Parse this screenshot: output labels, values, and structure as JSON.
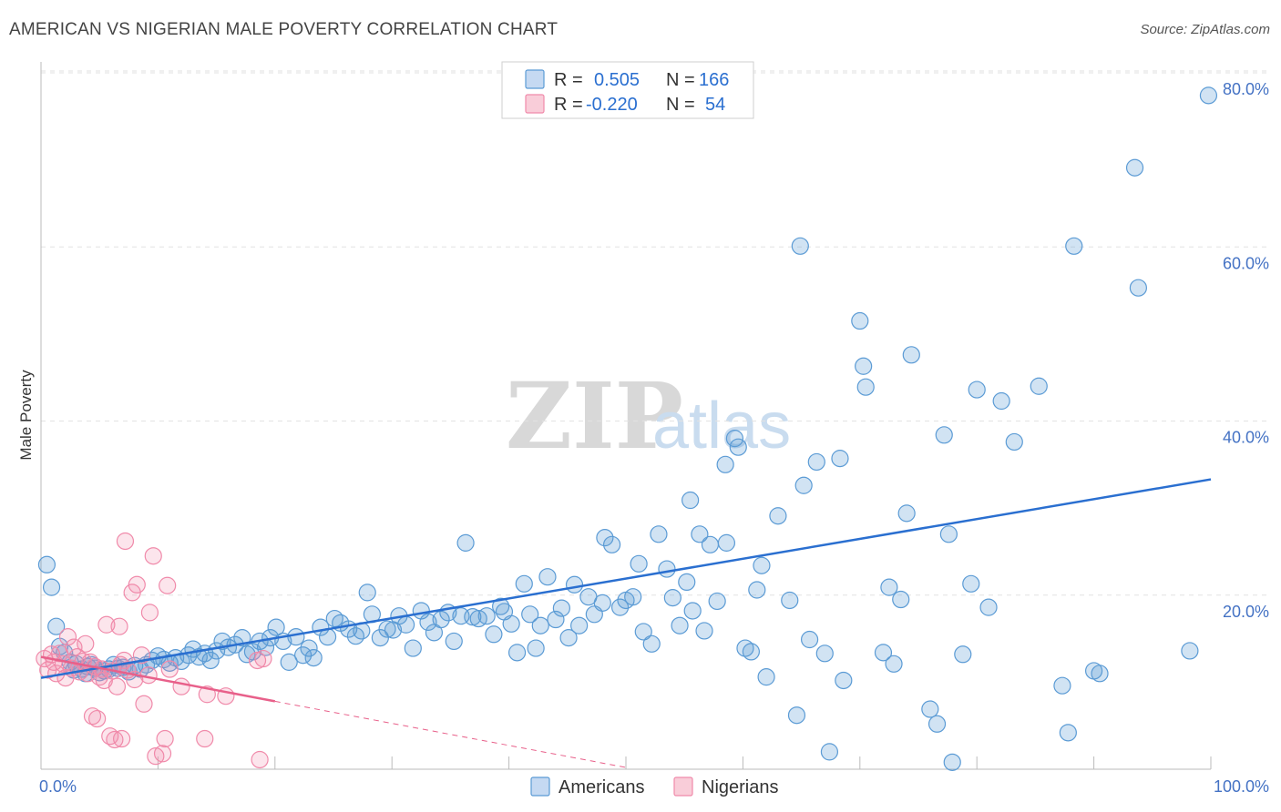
{
  "header": {
    "title": "AMERICAN VS NIGERIAN MALE POVERTY CORRELATION CHART",
    "source": "Source: ZipAtlas.com"
  },
  "watermark": {
    "zip": "ZIP",
    "atlas": "atlas"
  },
  "legend_top": [
    {
      "r_label": "R =",
      "r_value": "0.505",
      "n_label": "N =",
      "n_value": "166",
      "color": "#5b9bd5"
    },
    {
      "r_label": "R =",
      "r_value": "-0.220",
      "n_label": "N =",
      "n_value": "54",
      "color": "#f08aaa"
    }
  ],
  "colors": {
    "americans": "#5b9bd5",
    "americans_line": "#2a6fd0",
    "nigerians": "#f08aaa",
    "nigerians_line": "#e8608a",
    "label": "#4472c4"
  },
  "chart_data": {
    "type": "scatter",
    "title": "AMERICAN VS NIGERIAN MALE POVERTY CORRELATION CHART",
    "xlabel": "",
    "ylabel": "Male Poverty",
    "xlim": [
      0,
      100
    ],
    "ylim": [
      0,
      80
    ],
    "x_tick_labels": [
      "0.0%",
      "100.0%"
    ],
    "y_ticks": [
      20,
      40,
      60,
      80
    ],
    "y_tick_labels": [
      "20.0%",
      "40.0%",
      "60.0%",
      "80.0%"
    ],
    "grid": true,
    "legend_position": "bottom",
    "series": [
      {
        "name": "Americans",
        "trend": {
          "x": [
            0,
            100
          ],
          "y": [
            10.5,
            33.3
          ]
        },
        "points": [
          [
            0.5,
            23.5
          ],
          [
            0.9,
            20.9
          ],
          [
            1.3,
            16.4
          ],
          [
            1.6,
            14.1
          ],
          [
            2.0,
            13.4
          ],
          [
            2.5,
            12.3
          ],
          [
            2.8,
            11.4
          ],
          [
            3.0,
            12.1
          ],
          [
            3.5,
            11.5
          ],
          [
            3.8,
            11.0
          ],
          [
            4.0,
            11.8
          ],
          [
            4.3,
            12.0
          ],
          [
            4.6,
            11.6
          ],
          [
            5.0,
            11.1
          ],
          [
            5.4,
            11.3
          ],
          [
            5.8,
            11.5
          ],
          [
            6.2,
            12.0
          ],
          [
            6.6,
            11.6
          ],
          [
            7.0,
            11.7
          ],
          [
            7.5,
            11.2
          ],
          [
            8.0,
            11.9
          ],
          [
            8.5,
            11.5
          ],
          [
            9.0,
            12.0
          ],
          [
            9.5,
            12.5
          ],
          [
            10.0,
            13.0
          ],
          [
            10.5,
            12.6
          ],
          [
            11.0,
            12.2
          ],
          [
            11.5,
            12.8
          ],
          [
            12.0,
            12.4
          ],
          [
            12.6,
            13.1
          ],
          [
            13.0,
            13.8
          ],
          [
            13.5,
            12.9
          ],
          [
            14.0,
            13.3
          ],
          [
            14.5,
            12.5
          ],
          [
            15.0,
            13.6
          ],
          [
            15.5,
            14.7
          ],
          [
            16.0,
            14.0
          ],
          [
            16.6,
            14.3
          ],
          [
            17.2,
            15.1
          ],
          [
            17.6,
            13.2
          ],
          [
            18.1,
            13.5
          ],
          [
            18.7,
            14.7
          ],
          [
            19.2,
            14.0
          ],
          [
            19.6,
            15.1
          ],
          [
            20.1,
            16.3
          ],
          [
            20.7,
            14.7
          ],
          [
            21.2,
            12.3
          ],
          [
            21.8,
            15.2
          ],
          [
            22.4,
            13.1
          ],
          [
            22.9,
            13.9
          ],
          [
            23.3,
            12.8
          ],
          [
            23.9,
            16.3
          ],
          [
            24.5,
            15.2
          ],
          [
            25.1,
            17.3
          ],
          [
            25.6,
            16.8
          ],
          [
            26.3,
            16.1
          ],
          [
            26.9,
            15.3
          ],
          [
            27.4,
            15.9
          ],
          [
            27.9,
            20.3
          ],
          [
            28.3,
            17.8
          ],
          [
            29.0,
            15.1
          ],
          [
            29.6,
            16.1
          ],
          [
            30.1,
            16.0
          ],
          [
            30.6,
            17.6
          ],
          [
            31.2,
            16.6
          ],
          [
            31.8,
            13.9
          ],
          [
            32.5,
            18.2
          ],
          [
            33.1,
            16.9
          ],
          [
            33.6,
            15.7
          ],
          [
            34.2,
            17.2
          ],
          [
            34.8,
            18.0
          ],
          [
            35.3,
            14.7
          ],
          [
            35.9,
            17.6
          ],
          [
            36.3,
            26.0
          ],
          [
            36.9,
            17.5
          ],
          [
            37.4,
            17.3
          ],
          [
            38.1,
            17.6
          ],
          [
            38.7,
            15.5
          ],
          [
            39.3,
            18.7
          ],
          [
            39.6,
            18.1
          ],
          [
            40.2,
            16.7
          ],
          [
            40.7,
            13.4
          ],
          [
            41.3,
            21.3
          ],
          [
            41.8,
            17.8
          ],
          [
            42.3,
            13.9
          ],
          [
            42.7,
            16.5
          ],
          [
            43.3,
            22.1
          ],
          [
            44.0,
            17.2
          ],
          [
            44.5,
            18.5
          ],
          [
            45.1,
            15.1
          ],
          [
            45.6,
            21.2
          ],
          [
            46.0,
            16.5
          ],
          [
            46.8,
            19.8
          ],
          [
            47.3,
            17.8
          ],
          [
            48.0,
            19.1
          ],
          [
            48.2,
            26.6
          ],
          [
            48.8,
            25.8
          ],
          [
            49.5,
            18.6
          ],
          [
            50.0,
            19.4
          ],
          [
            50.6,
            19.8
          ],
          [
            51.1,
            23.6
          ],
          [
            51.5,
            15.8
          ],
          [
            52.2,
            14.4
          ],
          [
            52.8,
            27.0
          ],
          [
            53.5,
            23.0
          ],
          [
            54.0,
            19.7
          ],
          [
            54.6,
            16.5
          ],
          [
            55.2,
            21.5
          ],
          [
            55.7,
            18.2
          ],
          [
            55.5,
            30.9
          ],
          [
            56.3,
            27.0
          ],
          [
            56.7,
            15.9
          ],
          [
            57.2,
            25.8
          ],
          [
            57.8,
            19.3
          ],
          [
            58.6,
            26.0
          ],
          [
            58.5,
            35.0
          ],
          [
            59.3,
            38.0
          ],
          [
            59.6,
            37.0
          ],
          [
            60.2,
            13.9
          ],
          [
            60.7,
            13.5
          ],
          [
            61.2,
            20.6
          ],
          [
            61.6,
            23.4
          ],
          [
            62.0,
            10.6
          ],
          [
            63.0,
            29.1
          ],
          [
            64.0,
            19.4
          ],
          [
            64.6,
            6.2
          ],
          [
            64.9,
            60.1
          ],
          [
            65.2,
            32.6
          ],
          [
            65.7,
            14.9
          ],
          [
            66.3,
            35.3
          ],
          [
            67.0,
            13.3
          ],
          [
            67.4,
            2.0
          ],
          [
            68.3,
            35.7
          ],
          [
            68.6,
            10.2
          ],
          [
            70.0,
            51.5
          ],
          [
            70.3,
            46.3
          ],
          [
            70.5,
            43.9
          ],
          [
            72.0,
            13.4
          ],
          [
            72.5,
            20.9
          ],
          [
            72.9,
            12.1
          ],
          [
            73.5,
            19.5
          ],
          [
            74.0,
            29.4
          ],
          [
            74.4,
            47.6
          ],
          [
            76.0,
            6.9
          ],
          [
            76.6,
            5.2
          ],
          [
            77.2,
            38.4
          ],
          [
            77.6,
            27.0
          ],
          [
            77.9,
            0.8
          ],
          [
            78.8,
            13.2
          ],
          [
            79.5,
            21.3
          ],
          [
            80.0,
            43.6
          ],
          [
            81.0,
            18.6
          ],
          [
            82.1,
            42.3
          ],
          [
            83.2,
            37.6
          ],
          [
            85.3,
            44.0
          ],
          [
            87.3,
            9.6
          ],
          [
            87.8,
            4.2
          ],
          [
            88.3,
            60.1
          ],
          [
            90.0,
            11.3
          ],
          [
            90.5,
            11.0
          ],
          [
            93.5,
            69.1
          ],
          [
            93.8,
            55.3
          ],
          [
            98.2,
            13.6
          ],
          [
            99.8,
            77.4
          ]
        ]
      },
      {
        "name": "Nigerians",
        "trend": {
          "x": [
            0,
            20
          ],
          "y": [
            12.9,
            7.8
          ],
          "dashed_extension": {
            "x": [
              20,
              50
            ],
            "y": [
              7.8,
              0.2
            ]
          }
        },
        "points": [
          [
            0.3,
            12.7
          ],
          [
            0.6,
            11.4
          ],
          [
            0.9,
            13.2
          ],
          [
            1.1,
            12.3
          ],
          [
            1.3,
            11.0
          ],
          [
            1.6,
            13.3
          ],
          [
            1.9,
            12.1
          ],
          [
            2.1,
            10.5
          ],
          [
            2.3,
            15.2
          ],
          [
            2.6,
            11.6
          ],
          [
            2.8,
            14.0
          ],
          [
            3.1,
            12.9
          ],
          [
            3.3,
            11.2
          ],
          [
            3.6,
            12.4
          ],
          [
            3.8,
            14.4
          ],
          [
            4.0,
            11.0
          ],
          [
            4.2,
            12.3
          ],
          [
            4.4,
            6.1
          ],
          [
            4.6,
            11.8
          ],
          [
            4.8,
            5.8
          ],
          [
            5.0,
            10.6
          ],
          [
            5.2,
            11.5
          ],
          [
            5.4,
            10.2
          ],
          [
            5.6,
            16.6
          ],
          [
            5.9,
            3.8
          ],
          [
            6.1,
            11.3
          ],
          [
            6.3,
            3.4
          ],
          [
            6.5,
            9.5
          ],
          [
            6.8,
            12.0
          ],
          [
            6.7,
            16.4
          ],
          [
            6.9,
            3.5
          ],
          [
            7.1,
            12.5
          ],
          [
            7.2,
            26.2
          ],
          [
            7.4,
            11.4
          ],
          [
            7.8,
            20.3
          ],
          [
            8.0,
            10.3
          ],
          [
            8.2,
            21.2
          ],
          [
            8.6,
            13.1
          ],
          [
            8.8,
            7.5
          ],
          [
            9.2,
            10.8
          ],
          [
            9.3,
            18.0
          ],
          [
            9.6,
            24.5
          ],
          [
            9.8,
            1.5
          ],
          [
            10.4,
            1.8
          ],
          [
            10.6,
            3.5
          ],
          [
            10.8,
            21.1
          ],
          [
            11.0,
            11.5
          ],
          [
            12.0,
            9.5
          ],
          [
            14.0,
            3.5
          ],
          [
            14.2,
            8.6
          ],
          [
            15.8,
            8.4
          ],
          [
            18.5,
            12.5
          ],
          [
            18.7,
            1.1
          ],
          [
            19.0,
            12.7
          ]
        ]
      }
    ]
  },
  "legend_bottom": [
    {
      "label": "Americans",
      "color": "#5b9bd5"
    },
    {
      "label": "Nigerians",
      "color": "#f08aaa"
    }
  ]
}
